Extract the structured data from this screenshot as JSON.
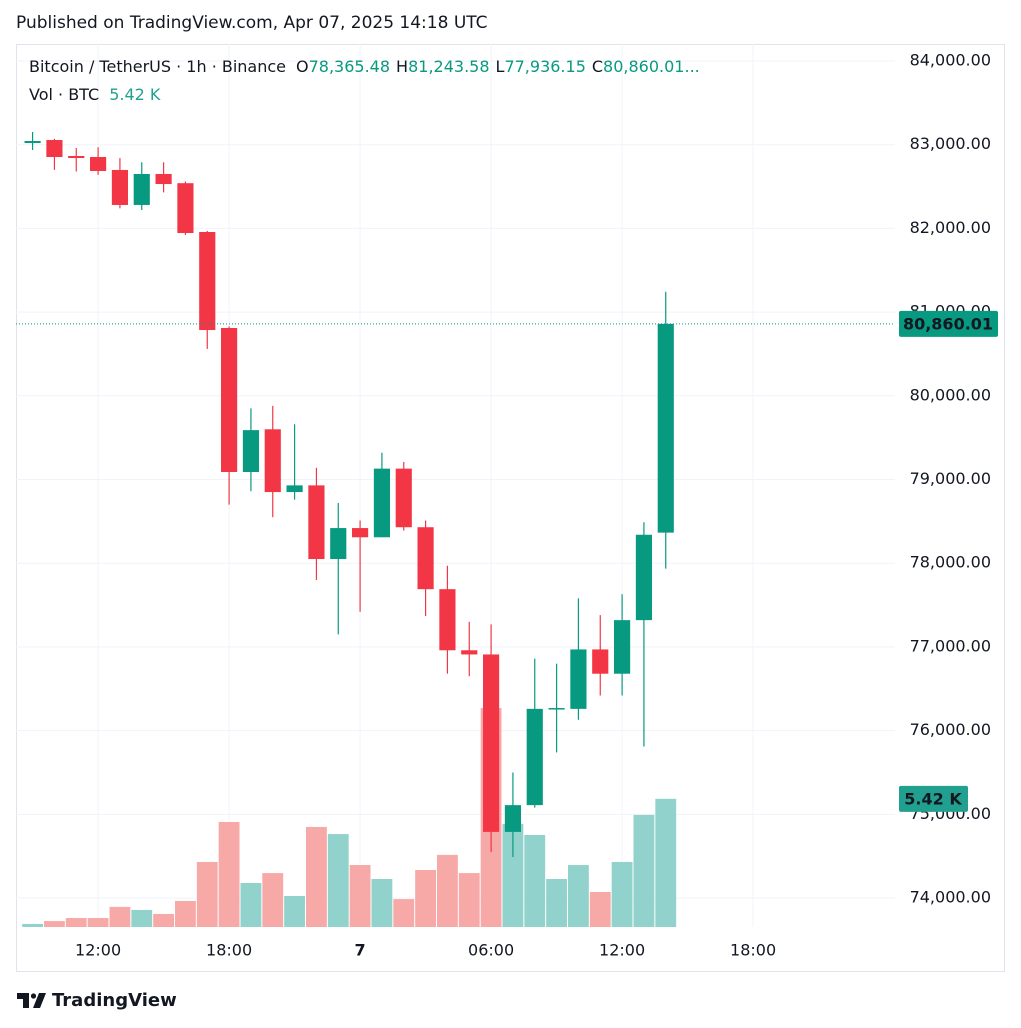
{
  "published": "Published on TradingView.com, Apr 07, 2025 14:18 UTC",
  "footer": "TradingView",
  "chart_data": {
    "type": "candlestick",
    "title": "Bitcoin / TetherUS · 1h · Binance",
    "ohlc_header": [
      {
        "key": "O",
        "value": "78,365.48"
      },
      {
        "key": "H",
        "value": "81,243.58"
      },
      {
        "key": "L",
        "value": "77,936.15"
      },
      {
        "key": "C",
        "value": "80,860.01..."
      }
    ],
    "last_price_label": "80,860.01",
    "up_color": "#089981",
    "down_color": "#f23645",
    "x": [
      9,
      10,
      11,
      12,
      13,
      14,
      15,
      16,
      17,
      18,
      19,
      20,
      21,
      22,
      23,
      24,
      25,
      26,
      27,
      28,
      29,
      30,
      31,
      32,
      33,
      34,
      35,
      36,
      37,
      38
    ],
    "open": [
      83020,
      83056,
      82865,
      82853,
      82698,
      82280,
      82650,
      82540,
      81957,
      80810,
      79090,
      79600,
      78850,
      78930,
      78050,
      78420,
      78310,
      79130,
      78430,
      77690,
      76960,
      76910,
      74790,
      75110,
      76260,
      76260,
      76970,
      76680,
      77320,
      78365.48
    ],
    "high": [
      83152,
      83070,
      82960,
      82970,
      82840,
      82790,
      82790,
      82560,
      81970,
      80830,
      79850,
      79880,
      79660,
      79140,
      78720,
      78510,
      79320,
      79210,
      78510,
      77970,
      77300,
      77270,
      75500,
      76860,
      76800,
      77580,
      77380,
      77630,
      78490,
      81243.58
    ],
    "low": [
      82937,
      82700,
      82680,
      82640,
      82240,
      82220,
      82430,
      81920,
      80560,
      78700,
      78860,
      78550,
      78760,
      77800,
      77150,
      77420,
      78310,
      78390,
      77370,
      76680,
      76650,
      74550,
      74490,
      75080,
      75740,
      76130,
      76420,
      76420,
      75810,
      77936.15
    ],
    "close": [
      83044,
      82853,
      82841,
      82686,
      82280,
      82650,
      82530,
      81945,
      80786,
      79090,
      79590,
      78850,
      78930,
      78050,
      78420,
      78310,
      79130,
      78430,
      77690,
      76960,
      76910,
      74790,
      75110,
      76260,
      76270,
      76970,
      76680,
      77320,
      78340,
      80860.01
    ],
    "volume": {
      "name": "Vol · BTC",
      "values": [
        130,
        250,
        380,
        380,
        850,
        720,
        550,
        1100,
        2750,
        4440,
        1860,
        2280,
        1310,
        4230,
        3930,
        2620,
        2030,
        1180,
        2410,
        3050,
        2280,
        9260,
        4360,
        3890,
        2030,
        2620,
        1480,
        2750,
        4740,
        5420
      ],
      "last_label": "5.42 K",
      "up_color": "#92d2cc",
      "down_color": "#f7a9a7"
    },
    "xlim": [
      8.24,
      48.5
    ],
    "xticks": [
      {
        "value": 12,
        "label": "12:00"
      },
      {
        "value": 18,
        "label": "18:00"
      },
      {
        "value": 24,
        "label": "7"
      },
      {
        "value": 30,
        "label": "06:00"
      },
      {
        "value": 36,
        "label": "12:00"
      },
      {
        "value": 42,
        "label": "18:00"
      }
    ],
    "ylim": [
      73654,
      84203
    ],
    "yticks": [
      {
        "value": 74000,
        "label": "74,000.00"
      },
      {
        "value": 75000,
        "label": "75,000.00"
      },
      {
        "value": 76000,
        "label": "76,000.00"
      },
      {
        "value": 77000,
        "label": "77,000.00"
      },
      {
        "value": 78000,
        "label": "78,000.00"
      },
      {
        "value": 79000,
        "label": "79,000.00"
      },
      {
        "value": 80000,
        "label": "80,000.00"
      },
      {
        "value": 81000,
        "label": "81,000.00"
      },
      {
        "value": 82000,
        "label": "82,000.00"
      },
      {
        "value": 83000,
        "label": "83,000.00"
      },
      {
        "value": 84000,
        "label": "84,000.00"
      }
    ],
    "grid": true
  }
}
